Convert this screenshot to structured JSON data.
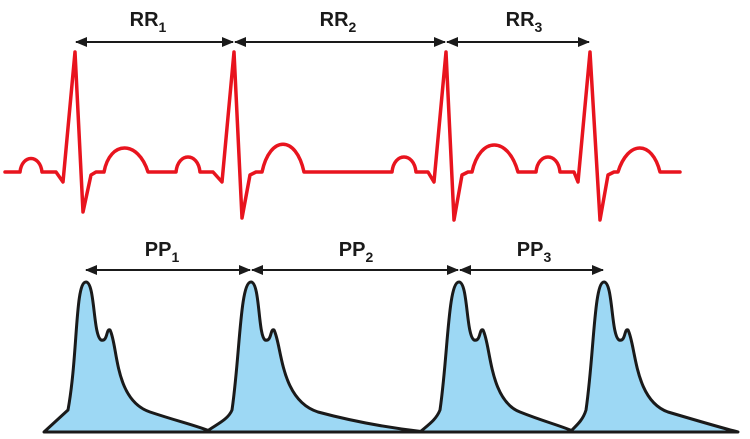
{
  "colors": {
    "ecg_trace": "#e8141e",
    "ppg_fill": "#9dd8f4",
    "ppg_outline": "#1a1a1a",
    "arrow": "#1a1a1a",
    "text": "#1a1a1a",
    "background": "#ffffff"
  },
  "ecg": {
    "intervals": [
      {
        "label": "RR",
        "subscript": "1"
      },
      {
        "label": "RR",
        "subscript": "2"
      },
      {
        "label": "RR",
        "subscript": "3"
      }
    ]
  },
  "ppg": {
    "intervals": [
      {
        "label": "PP",
        "subscript": "1"
      },
      {
        "label": "PP",
        "subscript": "2"
      },
      {
        "label": "PP",
        "subscript": "3"
      }
    ]
  }
}
